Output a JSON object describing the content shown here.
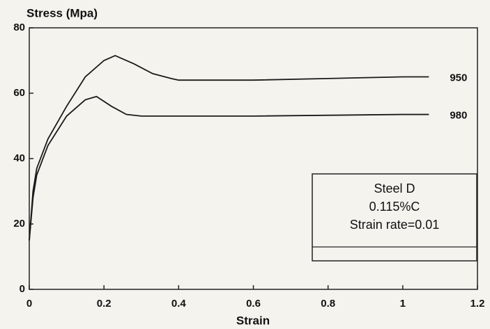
{
  "chart_data": {
    "type": "line",
    "y_label": "Stress (Mpa)",
    "x_label": "Strain",
    "xlim": [
      0,
      1.2
    ],
    "xticks": [
      0,
      0.2,
      0.4,
      0.6,
      0.8,
      1,
      1.2
    ],
    "ylim": [
      0,
      80
    ],
    "yticks": [
      0,
      20,
      40,
      60,
      80
    ],
    "series": [
      {
        "name": "950",
        "color": "#1a1a1a",
        "x": [
          0,
          0.01,
          0.02,
          0.05,
          0.1,
          0.15,
          0.2,
          0.23,
          0.28,
          0.33,
          0.38,
          0.4,
          0.6,
          0.8,
          1.0,
          1.07
        ],
        "values": [
          15,
          30,
          37,
          46,
          56,
          65,
          70,
          71.5,
          69,
          66,
          64.5,
          64,
          64,
          64.5,
          65,
          65
        ]
      },
      {
        "name": "980",
        "color": "#1a1a1a",
        "x": [
          0,
          0.01,
          0.02,
          0.05,
          0.1,
          0.15,
          0.18,
          0.22,
          0.26,
          0.3,
          0.6,
          1.0,
          1.07
        ],
        "values": [
          15,
          28,
          35,
          44,
          53,
          58,
          59,
          56,
          53.5,
          53,
          53,
          53.5,
          53.5
        ]
      }
    ],
    "annotation": [
      "Steel D",
      "0.115%C",
      "Strain rate=0.01"
    ]
  }
}
